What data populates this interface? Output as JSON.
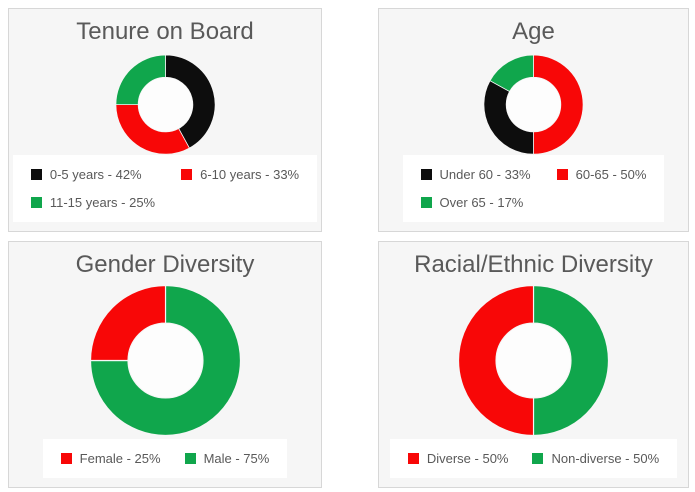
{
  "colors": {
    "black": "#0d0d0d",
    "red": "#f80707",
    "green": "#10a64c",
    "panel_bg": "#f6f6f6",
    "panel_border": "#d7d7d7",
    "text": "#595959",
    "legend_bg": "#ffffff",
    "hole_fill": "#fdfdfd"
  },
  "chart_data": [
    {
      "id": "tenure",
      "type": "pie",
      "title": "Tenure on Board",
      "donut_hole_ratio": 0.55,
      "start_angle_deg": 0,
      "legend_position": "bottom",
      "slices": [
        {
          "label": "0-5 years",
          "value": 42,
          "color": "black"
        },
        {
          "label": "6-10 years",
          "value": 33,
          "color": "red"
        },
        {
          "label": "11-15 years",
          "value": 25,
          "color": "green"
        }
      ],
      "legend": [
        {
          "color": "black",
          "text": "0-5 years - 42%"
        },
        {
          "color": "red",
          "text": "6-10 years - 33%"
        },
        {
          "color": "green",
          "text": "11-15 years - 25%"
        }
      ]
    },
    {
      "id": "age",
      "type": "pie",
      "title": "Age",
      "donut_hole_ratio": 0.55,
      "start_angle_deg": 0,
      "legend_position": "bottom",
      "slices": [
        {
          "label": "60-65",
          "value": 50,
          "color": "red"
        },
        {
          "label": "Under 60",
          "value": 33,
          "color": "black"
        },
        {
          "label": "Over 65",
          "value": 17,
          "color": "green"
        }
      ],
      "legend": [
        {
          "color": "black",
          "text": "Under 60 - 33%"
        },
        {
          "color": "red",
          "text": "60-65 - 50%"
        },
        {
          "color": "green",
          "text": "Over 65 - 17%"
        }
      ]
    },
    {
      "id": "gender",
      "type": "pie",
      "title": "Gender Diversity",
      "donut_hole_ratio": 0.5,
      "start_angle_deg": 0,
      "legend_position": "bottom",
      "slices": [
        {
          "label": "Male",
          "value": 75,
          "color": "green"
        },
        {
          "label": "Female",
          "value": 25,
          "color": "red"
        }
      ],
      "legend": [
        {
          "color": "red",
          "text": "Female - 25%"
        },
        {
          "color": "green",
          "text": "Male - 75%"
        }
      ]
    },
    {
      "id": "racial",
      "type": "pie",
      "title": "Racial/Ethnic Diversity",
      "donut_hole_ratio": 0.5,
      "start_angle_deg": 0,
      "legend_position": "bottom",
      "slices": [
        {
          "label": "Non-diverse",
          "value": 50,
          "color": "green"
        },
        {
          "label": "Diverse",
          "value": 50,
          "color": "red"
        }
      ],
      "legend": [
        {
          "color": "red",
          "text": "Diverse - 50%"
        },
        {
          "color": "green",
          "text": "Non-diverse - 50%"
        }
      ]
    }
  ]
}
